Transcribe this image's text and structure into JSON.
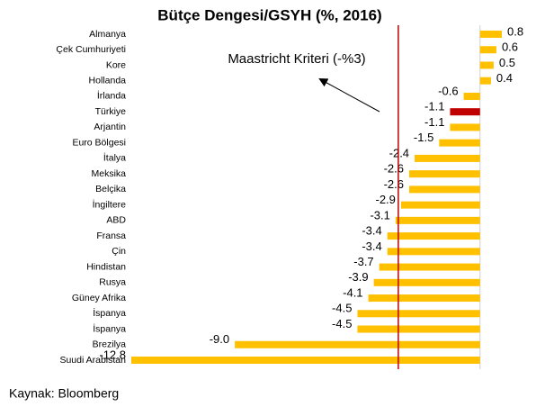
{
  "chart_data": {
    "type": "hbar",
    "title": "Bütçe Dengesi/GSYH (%, 2016)",
    "categories": [
      "Almanya",
      "Çek Cumhuriyeti",
      "Kore",
      "Hollanda",
      "İrlanda",
      "Türkiye",
      "Arjantin",
      "Euro Bölgesi",
      "İtalya",
      "Meksika",
      "Belçika",
      "İngiltere",
      "ABD",
      "Fransa",
      "Çin",
      "Hindistan",
      "Rusya",
      "Güney Afrika",
      "İspanya",
      "İspanya",
      "Brezilya",
      "Suudi Arabistan"
    ],
    "values": [
      0.8,
      0.6,
      0.5,
      0.4,
      -0.6,
      -1.1,
      -1.1,
      -1.5,
      -2.4,
      -2.6,
      -2.6,
      -2.9,
      -3.1,
      -3.4,
      -3.4,
      -3.7,
      -3.9,
      -4.1,
      -4.5,
      -4.5,
      -9.0,
      -12.8
    ],
    "value_labels": [
      "0.8",
      "0.6",
      "0.5",
      "0.4",
      "-0.6",
      "-1.1",
      "-1.1",
      "-1.5",
      "-2.4",
      "-2.6",
      "-2.6",
      "-2.9",
      "-3.1",
      "-3.4",
      "-3.4",
      "-3.7",
      "-3.9",
      "-4.1",
      "-4.5",
      "-4.5",
      "-9.0",
      "-12.8"
    ],
    "colors": [
      "#ffc000",
      "#ffc000",
      "#ffc000",
      "#ffc000",
      "#ffc000",
      "#c00000",
      "#ffc000",
      "#ffc000",
      "#ffc000",
      "#ffc000",
      "#ffc000",
      "#ffc000",
      "#ffc000",
      "#ffc000",
      "#ffc000",
      "#ffc000",
      "#ffc000",
      "#ffc000",
      "#ffc000",
      "#ffc000",
      "#ffc000",
      "#ffc000"
    ],
    "reference_line": {
      "value": -3,
      "label": "Maastricht Kriteri (-%3)",
      "color": "#c00000"
    },
    "source": "Kaynak: Bloomberg"
  }
}
